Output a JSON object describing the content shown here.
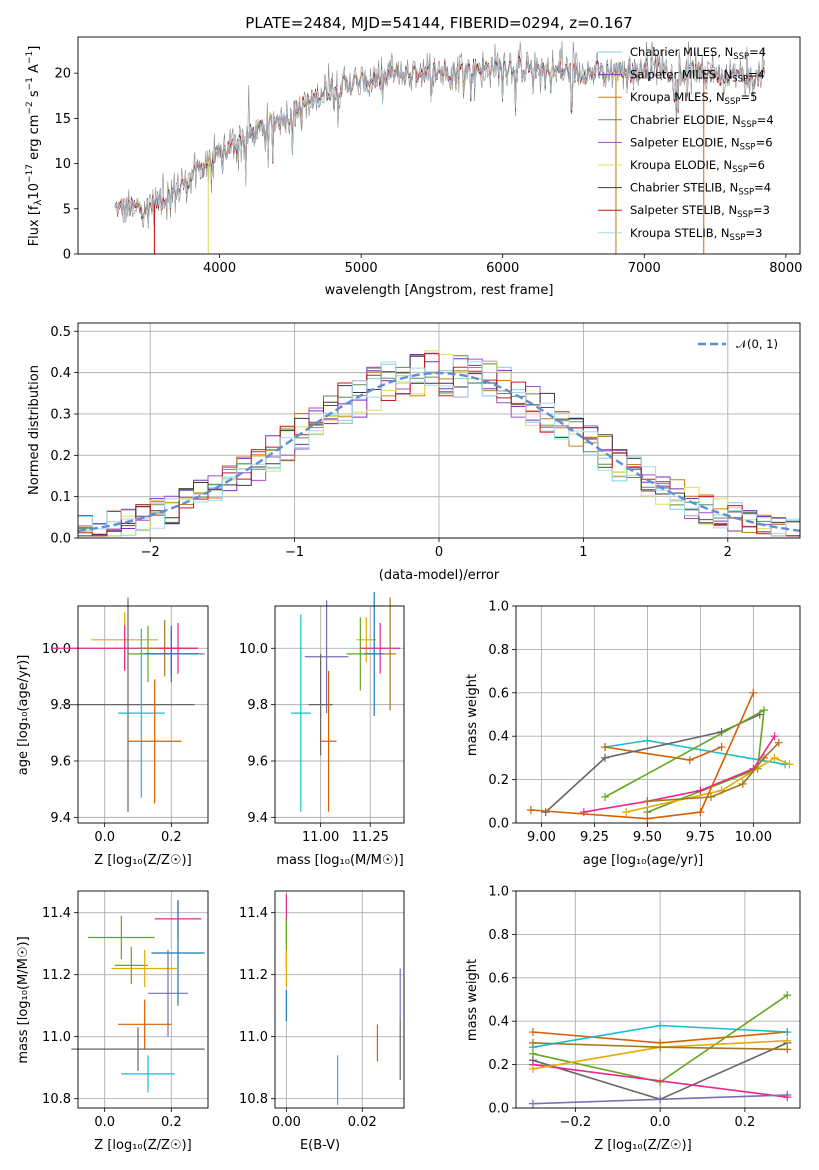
{
  "colors": {
    "series": [
      "#1f77b4",
      "#d95f02",
      "#7570b3",
      "#e7298a",
      "#66a61e",
      "#e6ab02",
      "#a6761d",
      "#666666",
      "#17becf"
    ],
    "legend_lines": [
      "#7fd6e0",
      "#7b2fbe",
      "#cc7f1a",
      "#5a8f5a",
      "#a34ec4",
      "#dde05a",
      "#3a3a3a",
      "#c11d1d",
      "#a9d7e8"
    ],
    "grid": "#b0b0b0",
    "norm_curve": "#5b8fd6"
  },
  "chart_data": [
    {
      "type": "line",
      "id": "spectrum",
      "title": "PLATE=2484, MJD=54144, FIBERID=0294, z=0.167",
      "xlabel": "wavelength [Angstrom, rest frame]",
      "ylabel_parts": [
        "Flux [f",
        "λ",
        "10",
        "−17",
        " erg cm",
        "−2",
        " s",
        "−1",
        " A",
        "−1",
        "]"
      ],
      "xlim": [
        3000,
        8100
      ],
      "ylim": [
        0,
        24
      ],
      "xticks": [
        4000,
        5000,
        6000,
        7000,
        8000
      ],
      "yticks": [
        0,
        5,
        10,
        15,
        20
      ],
      "legend_placement": "top-right",
      "legend": [
        {
          "base": "Chabrier MILES, N",
          "sub": "SSP",
          "tail": "=4"
        },
        {
          "base": "Salpeter MILES, N",
          "sub": "SSP",
          "tail": "=4"
        },
        {
          "base": "Kroupa MILES, N",
          "sub": "SSP",
          "tail": "=5"
        },
        {
          "base": "Chabrier ELODIE, N",
          "sub": "SSP",
          "tail": "=4"
        },
        {
          "base": "Salpeter ELODIE, N",
          "sub": "SSP",
          "tail": "=6"
        },
        {
          "base": "Kroupa ELODIE, N",
          "sub": "SSP",
          "tail": "=6"
        },
        {
          "base": "Chabrier STELIB, N",
          "sub": "SSP",
          "tail": "=4"
        },
        {
          "base": "Salpeter STELIB, N",
          "sub": "SSP",
          "tail": "=3"
        },
        {
          "base": "Kroupa STELIB, N",
          "sub": "SSP",
          "tail": "=3"
        }
      ],
      "continuum_knots": {
        "x": [
          3250,
          3500,
          3700,
          3900,
          4000,
          4300,
          4500,
          4800,
          5000,
          5200,
          5500,
          5800,
          6000,
          6300,
          6500,
          6800,
          7000,
          7400,
          7850
        ],
        "y": [
          5,
          5.2,
          7,
          10,
          11,
          14,
          15.5,
          18.5,
          19,
          19.8,
          20.2,
          20.5,
          20.8,
          20.5,
          20,
          20.2,
          20.5,
          20,
          19.5
        ]
      },
      "cutoffs": [
        {
          "series": "Salpeter STELIB",
          "x_end": 3540
        },
        {
          "series": "Kroupa ELODIE",
          "x_end": 3920
        },
        {
          "series": "Kroupa MILES",
          "x_end": 6800
        },
        {
          "series": "Salpeter STELIB",
          "x_end": 7420
        }
      ]
    },
    {
      "type": "histogram",
      "id": "residuals",
      "xlabel": "(data-model)/error",
      "ylabel": "Normed distribution",
      "xlim": [
        -2.5,
        2.5
      ],
      "ylim": [
        0,
        0.52
      ],
      "xticks": [
        -2,
        -1,
        0,
        1,
        2
      ],
      "yticks": [
        0.0,
        0.1,
        0.2,
        0.3,
        0.4,
        0.5
      ],
      "legend": "𝒩(0, 1)",
      "legend_placement": "top-right",
      "grid": true
    },
    {
      "type": "scatter",
      "id": "age_vs_Z",
      "xlabel": "Z [log₁₀(Z/Z☉)]",
      "ylabel": "age  [log₁₀(age/yr)]",
      "xlim": [
        -0.08,
        0.31
      ],
      "ylim": [
        9.38,
        10.15
      ],
      "xticks": [
        0.0,
        0.2
      ],
      "yticks": [
        9.4,
        9.6,
        9.8,
        10.0
      ],
      "grid": true,
      "points": [
        {
          "x": 0.06,
          "xerr": 0.1,
          "y": 10.03,
          "yerr": 0.1,
          "c": 5
        },
        {
          "x": 0.06,
          "xerr": 0.22,
          "y": 10.0,
          "yerr": 0.08,
          "c": 3
        },
        {
          "x": 0.2,
          "xerr": 0.1,
          "y": 9.98,
          "yerr": 0.08,
          "c": 2
        },
        {
          "x": 0.13,
          "xerr": 0.06,
          "y": 9.98,
          "yerr": 0.1,
          "c": 4
        },
        {
          "x": 0.18,
          "xerr": 0.08,
          "y": 10.0,
          "yerr": 0.1,
          "c": 6
        },
        {
          "x": 0.2,
          "xerr": 0.08,
          "y": 9.98,
          "yerr": 0.1,
          "c": 0
        },
        {
          "x": 0.22,
          "xerr": 0.06,
          "y": 10.0,
          "yerr": 0.09,
          "c": 3
        },
        {
          "x": 0.07,
          "xerr": 0.2,
          "y": 9.8,
          "yerr": 0.38,
          "c": 7
        },
        {
          "x": 0.11,
          "xerr": 0.07,
          "y": 9.77,
          "yerr": 0.3,
          "c": 8
        },
        {
          "x": 0.15,
          "xerr": 0.08,
          "y": 9.67,
          "yerr": 0.22,
          "c": 1
        }
      ]
    },
    {
      "type": "scatter",
      "id": "age_vs_mass",
      "xlabel": "mass [log₁₀(M/M☉)]",
      "ylabel": "",
      "xlim": [
        10.77,
        11.42
      ],
      "ylim": [
        9.38,
        10.15
      ],
      "xticks": [
        11.0,
        11.25
      ],
      "yticks": [
        9.4,
        9.6,
        9.8,
        10.0
      ],
      "grid": true,
      "points": [
        {
          "x": 11.23,
          "xerr": 0.05,
          "y": 10.03,
          "yerr": 0.08,
          "c": 5
        },
        {
          "x": 11.3,
          "xerr": 0.1,
          "y": 10.0,
          "yerr": 0.09,
          "c": 3
        },
        {
          "x": 11.03,
          "xerr": 0.11,
          "y": 9.97,
          "yerr": 0.2,
          "c": 2
        },
        {
          "x": 11.2,
          "xerr": 0.07,
          "y": 9.98,
          "yerr": 0.13,
          "c": 4
        },
        {
          "x": 11.27,
          "xerr": 0.05,
          "y": 9.98,
          "yerr": 0.22,
          "c": 0
        },
        {
          "x": 11.35,
          "xerr": 0.03,
          "y": 9.98,
          "yerr": 0.2,
          "c": 6
        },
        {
          "x": 11.0,
          "xerr": 0.06,
          "y": 9.8,
          "yerr": 0.18,
          "c": 7
        },
        {
          "x": 10.9,
          "xerr": 0.05,
          "y": 9.77,
          "yerr": 0.35,
          "c": 8
        },
        {
          "x": 11.04,
          "xerr": 0.04,
          "y": 9.67,
          "yerr": 0.25,
          "c": 1
        }
      ]
    },
    {
      "type": "line",
      "id": "mass_weight_vs_age",
      "xlabel": "age  [log₁₀(age/yr)]",
      "ylabel": "mass weight",
      "xlim": [
        8.88,
        10.22
      ],
      "ylim": [
        0,
        1
      ],
      "xticks": [
        9.0,
        9.25,
        9.5,
        9.75,
        10.0
      ],
      "yticks": [
        0.0,
        0.2,
        0.4,
        0.6,
        0.8,
        1.0
      ],
      "grid": true,
      "series": [
        {
          "c": 8,
          "x": [
            9.3,
            9.5,
            10.15
          ],
          "y": [
            0.35,
            0.38,
            0.27
          ]
        },
        {
          "c": 1,
          "x": [
            9.3,
            9.7,
            9.85
          ],
          "y": [
            0.35,
            0.29,
            0.35
          ]
        },
        {
          "c": 7,
          "x": [
            9.02,
            9.3,
            9.85,
            10.03
          ],
          "y": [
            0.05,
            0.3,
            0.42,
            0.5
          ]
        },
        {
          "c": 4,
          "x": [
            9.5,
            10.02,
            10.05,
            9.3
          ],
          "y": [
            0.05,
            0.25,
            0.52,
            0.12
          ]
        },
        {
          "c": 3,
          "x": [
            9.2,
            9.5,
            9.75,
            10.0,
            10.1
          ],
          "y": [
            0.05,
            0.1,
            0.15,
            0.25,
            0.4
          ]
        },
        {
          "c": 5,
          "x": [
            9.4,
            9.85,
            10.1,
            10.17
          ],
          "y": [
            0.05,
            0.15,
            0.3,
            0.27
          ]
        },
        {
          "c": 1,
          "x": [
            8.95,
            9.5,
            9.75,
            10.0
          ],
          "y": [
            0.06,
            0.02,
            0.05,
            0.6
          ]
        },
        {
          "c": 6,
          "x": [
            9.5,
            9.8,
            9.95,
            10.05,
            10.12
          ],
          "y": [
            0.1,
            0.12,
            0.18,
            0.3,
            0.37
          ]
        }
      ]
    },
    {
      "type": "scatter",
      "id": "mass_vs_Z",
      "xlabel": "Z [log₁₀(Z/Z☉)]",
      "ylabel": "mass [log₁₀(M/M☉)]",
      "xlim": [
        -0.08,
        0.31
      ],
      "ylim": [
        10.77,
        11.47
      ],
      "xticks": [
        0.0,
        0.2
      ],
      "yticks": [
        10.8,
        11.0,
        11.2,
        11.4
      ],
      "grid": true,
      "points": [
        {
          "x": 0.22,
          "xerr": 0.07,
          "y": 11.38,
          "yerr": 0.06,
          "c": 3
        },
        {
          "x": 0.05,
          "xerr": 0.1,
          "y": 11.32,
          "yerr": 0.07,
          "c": 4
        },
        {
          "x": 0.22,
          "xerr": 0.08,
          "y": 11.27,
          "yerr": 0.17,
          "c": 0
        },
        {
          "x": 0.08,
          "xerr": 0.05,
          "y": 11.23,
          "yerr": 0.06,
          "c": 4
        },
        {
          "x": 0.12,
          "xerr": 0.1,
          "y": 11.22,
          "yerr": 0.06,
          "c": 5
        },
        {
          "x": 0.19,
          "xerr": 0.06,
          "y": 11.14,
          "yerr": 0.14,
          "c": 2
        },
        {
          "x": 0.12,
          "xerr": 0.08,
          "y": 11.04,
          "yerr": 0.08,
          "c": 1
        },
        {
          "x": 0.1,
          "xerr": 0.2,
          "y": 10.96,
          "yerr": 0.07,
          "c": 7
        },
        {
          "x": 0.13,
          "xerr": 0.08,
          "y": 10.88,
          "yerr": 0.06,
          "c": 8
        }
      ]
    },
    {
      "type": "scatter",
      "id": "mass_vs_ebv",
      "xlabel": "E(B-V)",
      "ylabel": "",
      "xlim": [
        -0.003,
        0.031
      ],
      "ylim": [
        10.77,
        11.47
      ],
      "xticks": [
        0.0,
        0.02
      ],
      "yticks": [
        10.8,
        11.0,
        11.2,
        11.4
      ],
      "grid": true,
      "points": [
        {
          "x": 0.0,
          "y": 11.38,
          "yerr": 0.08,
          "c": 3
        },
        {
          "x": 0.0,
          "y": 11.3,
          "yerr": 0.08,
          "c": 4
        },
        {
          "x": 0.0,
          "y": 11.22,
          "yerr": 0.06,
          "c": 5
        },
        {
          "x": 0.0,
          "y": 11.1,
          "yerr": 0.05,
          "c": 0
        },
        {
          "x": 0.03,
          "y": 11.14,
          "yerr": 0.08,
          "c": 2
        },
        {
          "x": 0.03,
          "y": 10.96,
          "yerr": 0.1,
          "c": 7
        },
        {
          "x": 0.024,
          "y": 10.98,
          "yerr": 0.06,
          "c": 1
        },
        {
          "x": 0.0135,
          "y": 10.86,
          "yerr": 0.08,
          "c": 8
        }
      ]
    },
    {
      "type": "line",
      "id": "mass_weight_vs_Z",
      "xlabel": "Z [log₁₀(Z/Z☉)]",
      "ylabel": "mass weight",
      "xlim": [
        -0.34,
        0.33
      ],
      "ylim": [
        0,
        1
      ],
      "xticks": [
        -0.2,
        0.0,
        0.2
      ],
      "yticks": [
        0.0,
        0.2,
        0.4,
        0.6,
        0.8,
        1.0
      ],
      "grid": true,
      "series": [
        {
          "c": 1,
          "x": [
            -0.3,
            0.0,
            0.3
          ],
          "y": [
            0.35,
            0.3,
            0.35
          ]
        },
        {
          "c": 8,
          "x": [
            -0.3,
            0.0,
            0.3
          ],
          "y": [
            0.28,
            0.38,
            0.35
          ]
        },
        {
          "c": 4,
          "x": [
            -0.3,
            0.0,
            0.3
          ],
          "y": [
            0.25,
            0.12,
            0.52
          ]
        },
        {
          "c": 7,
          "x": [
            -0.3,
            0.0,
            0.3
          ],
          "y": [
            0.22,
            0.04,
            0.3
          ]
        },
        {
          "c": 3,
          "x": [
            -0.3,
            0.3
          ],
          "y": [
            0.2,
            0.05
          ]
        },
        {
          "c": 5,
          "x": [
            -0.3,
            0.0,
            0.3
          ],
          "y": [
            0.18,
            0.28,
            0.31
          ]
        },
        {
          "c": 2,
          "x": [
            -0.3,
            0.0,
            0.3
          ],
          "y": [
            0.02,
            0.04,
            0.06
          ]
        },
        {
          "c": 6,
          "x": [
            -0.3,
            0.0,
            0.3
          ],
          "y": [
            0.3,
            0.28,
            0.27
          ]
        }
      ]
    }
  ]
}
